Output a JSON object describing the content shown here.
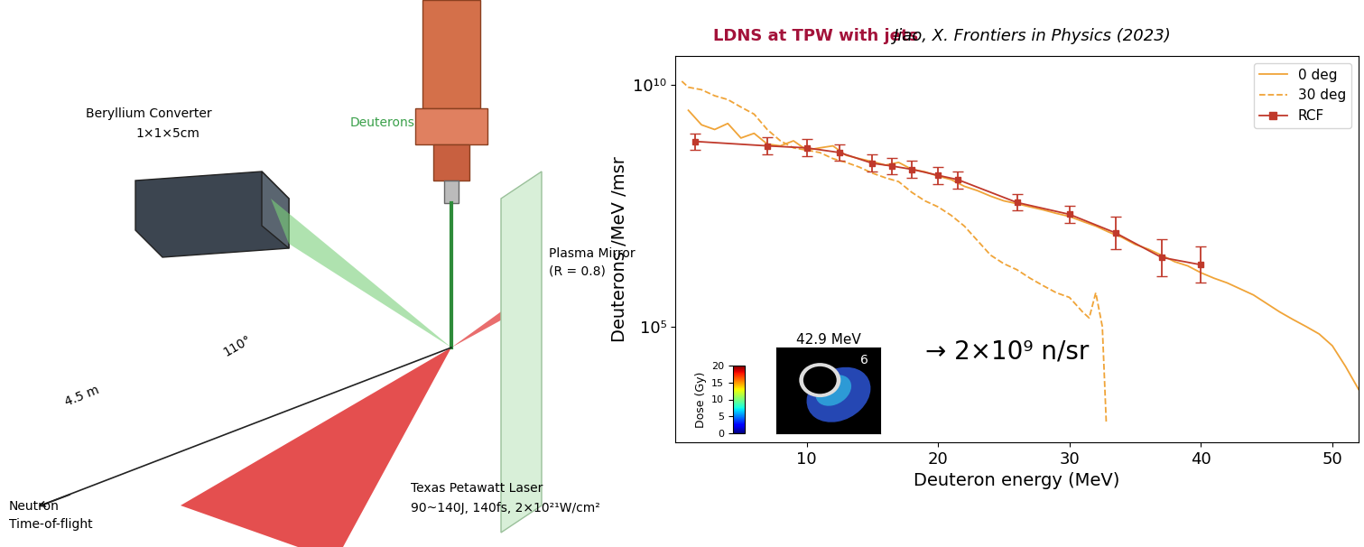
{
  "header": {
    "title": "LDNS at TPW with jets",
    "citation": "Jiao, X. Frontiers in Physics (2023)"
  },
  "diagram": {
    "converter": "Beryllium Converter",
    "converter_size": "1×1×5cm",
    "beam": "Deuterons",
    "mirror": "Plasma Mirror",
    "mirror_reflectivity": "(R = 0.8)",
    "angle": "110°",
    "distance": "4.5 m",
    "detector": [
      "Neutron",
      "Time-of-flight"
    ],
    "laser": "Texas Petawatt Laser",
    "laser_params": "90~140J, 140fs, 2×10²¹W/cm²"
  },
  "chart_data": {
    "type": "line",
    "log": "y",
    "legend": "upper right",
    "x_label": "Deuteron energy (MeV)",
    "y_label": "Deuterons /MeV /msr",
    "xlim": [
      0,
      52
    ],
    "xticks": [
      10,
      20,
      30,
      40,
      50
    ],
    "ylim": [
      400,
      40000000000
    ],
    "yticks": [
      {
        "value": 100000,
        "label": "10⁵"
      },
      {
        "value": 10000000000,
        "label": "10¹⁰"
      }
    ],
    "annotation": "→ 2×10⁹ n/sr",
    "series": [
      {
        "name": "0 deg",
        "color": "#f0a438",
        "line_style": "solid",
        "x": [
          1,
          2,
          3,
          4,
          5,
          6,
          7,
          8,
          9,
          10,
          11,
          12,
          13,
          14,
          15,
          16,
          17,
          18,
          19,
          20,
          21,
          22,
          23,
          24,
          25,
          26,
          27,
          28,
          29,
          30,
          31,
          32,
          33,
          34,
          35,
          36,
          37,
          38,
          39,
          40,
          41,
          42,
          43,
          44,
          45,
          46,
          47,
          48,
          49,
          50,
          51,
          52
        ],
        "values": [
          3000000000.0,
          1500000000.0,
          1200000000.0,
          1600000000.0,
          800000000.0,
          1000000000.0,
          600000000.0,
          550000000.0,
          700000000.0,
          450000000.0,
          500000000.0,
          550000000.0,
          350000000.0,
          300000000.0,
          260000000.0,
          220000000.0,
          250000000.0,
          180000000.0,
          160000000.0,
          130000000.0,
          110000000.0,
          80000000.0,
          65000000.0,
          50000000.0,
          40000000.0,
          35000000.0,
          30000000.0,
          26000000.0,
          22000000.0,
          19000000.0,
          15000000.0,
          12000000.0,
          9000000.0,
          7000000.0,
          5000000.0,
          4000000.0,
          3000000.0,
          2200000.0,
          1800000.0,
          1300000.0,
          1000000.0,
          800000.0,
          600000.0,
          450000.0,
          300000.0,
          200000.0,
          140000.0,
          100000.0,
          70000.0,
          40000.0,
          15000.0,
          5000.0
        ]
      },
      {
        "name": "30 deg",
        "color": "#f0a438",
        "line_style": "dashed",
        "x": [
          0.5,
          1,
          2,
          3,
          4,
          5,
          6,
          7,
          8,
          9,
          10,
          11,
          12,
          13,
          14,
          15,
          16,
          17,
          18,
          19,
          20,
          21,
          22,
          23,
          24,
          25,
          26,
          27,
          28,
          29,
          30,
          31,
          31.5,
          32,
          32.5,
          32.8
        ],
        "values": [
          12000000000.0,
          9000000000.0,
          8000000000.0,
          6000000000.0,
          5000000000.0,
          3500000000.0,
          2500000000.0,
          1200000000.0,
          700000000.0,
          500000000.0,
          450000000.0,
          400000000.0,
          300000000.0,
          250000000.0,
          200000000.0,
          150000000.0,
          120000000.0,
          100000000.0,
          60000000.0,
          40000000.0,
          30000000.0,
          20000000.0,
          12000000.0,
          6000000.0,
          3000000.0,
          2000000.0,
          1500000.0,
          1000000.0,
          700000.0,
          500000.0,
          400000.0,
          200000.0,
          150000.0,
          500000.0,
          100000.0,
          1000.0
        ]
      },
      {
        "name": "RCF",
        "color": "#c0392b",
        "line_style": "solid",
        "marker": "square",
        "x": [
          1.5,
          7,
          10,
          12.5,
          15,
          16.5,
          18,
          20,
          21.5,
          26,
          30,
          33.5,
          37,
          40
        ],
        "values": [
          680000000.0,
          550000000.0,
          500000000.0,
          400000000.0,
          240000000.0,
          210000000.0,
          180000000.0,
          135000000.0,
          110000000.0,
          37000000.0,
          21000000.0,
          8700000.0,
          2700000.0,
          1900000.0
        ],
        "error_low": [
          450000000.0,
          370000000.0,
          330000000.0,
          270000000.0,
          160000000.0,
          140000000.0,
          120000000.0,
          90000000.0,
          73000000.0,
          25000000.0,
          14000000.0,
          4000000.0,
          1100000.0,
          800000.0
        ],
        "error_high": [
          1000000000.0,
          820000000.0,
          750000000.0,
          600000000.0,
          360000000.0,
          310000000.0,
          270000000.0,
          200000000.0,
          160000000.0,
          55000000.0,
          31000000.0,
          19000000.0,
          6500000.0,
          4500000.0
        ]
      }
    ],
    "inset": {
      "title": "42.9 MeV",
      "mark": "6",
      "colorbar_label": "Dose (Gy)",
      "colorbar_range": [
        0,
        20
      ],
      "colorbar_ticks": [
        0,
        5,
        10,
        15,
        20
      ]
    }
  }
}
